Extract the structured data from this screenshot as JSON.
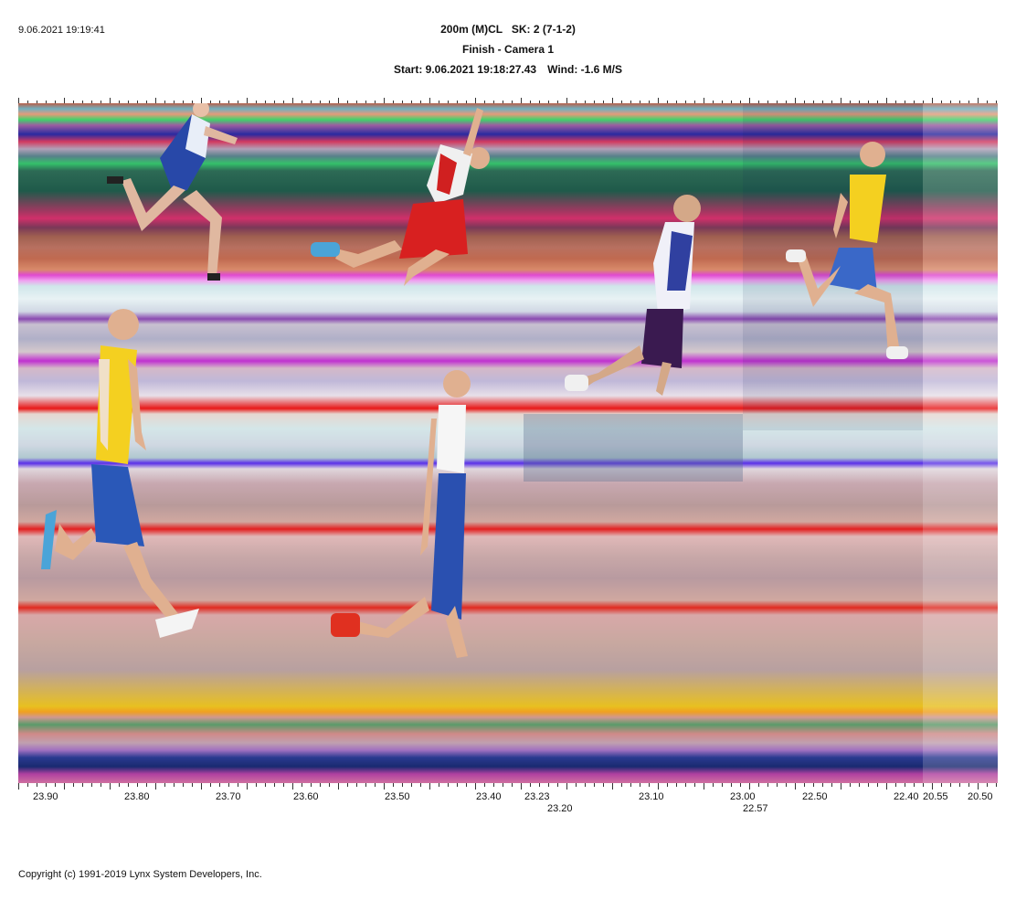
{
  "header": {
    "timestamp": "9.06.2021 19:19:41",
    "line1": "200m (M)CL   SK: 2 (7-1-2)",
    "line2": "Finish - Camera 1",
    "start": "Start: 9.06.2021 19:18:27.43",
    "wind": "Wind: -1.6 M/S"
  },
  "axis": {
    "labels": [
      {
        "text": "23.90"
      },
      {
        "text": "23.80"
      },
      {
        "text": "23.70"
      },
      {
        "text": "23.60"
      },
      {
        "text": "23.50"
      },
      {
        "text": "23.40"
      },
      {
        "text": "23.23"
      },
      {
        "text": "23.20"
      },
      {
        "text": "23.10"
      },
      {
        "text": "23.00"
      },
      {
        "text": "22.57"
      },
      {
        "text": "22.50"
      },
      {
        "text": "22.40"
      },
      {
        "text": "20.55"
      },
      {
        "text": "20.50"
      }
    ]
  },
  "footer": {
    "copyright": "Copyright (c) 1991-2019 Lynx System Developers, Inc."
  },
  "colors": {
    "background": "#ffffff",
    "text": "#111111",
    "ruler": "#333333"
  },
  "icons": {
    "runners": [
      "runner-blue-white-top",
      "runner-red-white",
      "runner-blue-red-white",
      "runner-yellow-top",
      "runner-yellow-blue-bottom",
      "runner-white-blue-bottom"
    ]
  }
}
